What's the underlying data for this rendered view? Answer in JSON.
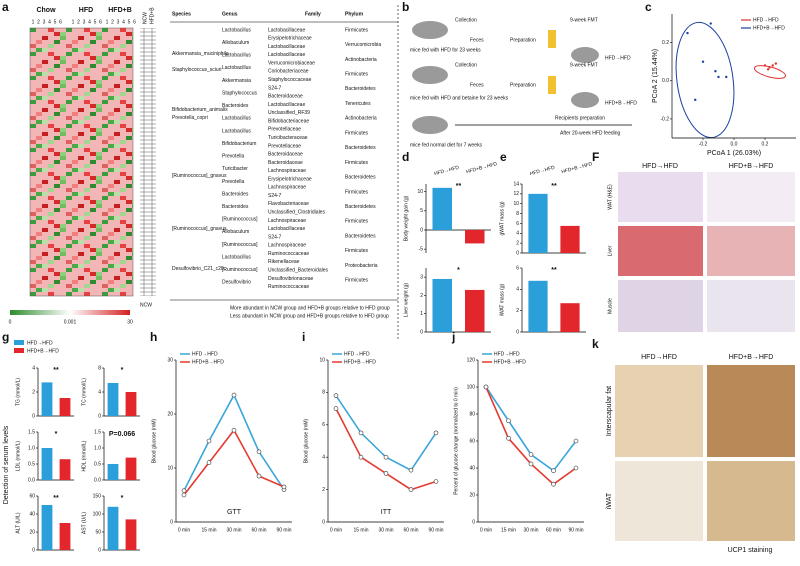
{
  "panel_labels": [
    "a",
    "b",
    "c",
    "d",
    "e",
    "F",
    "g",
    "h",
    "i",
    "j",
    "k"
  ],
  "heatmap": {
    "groups": [
      "Chow",
      "HFD",
      "HFD+B"
    ],
    "columns": [
      "1",
      "2",
      "3",
      "4",
      "5",
      "6"
    ],
    "side": [
      "NCW",
      "HFD+B"
    ],
    "scale": [
      "0",
      "0.001",
      "30"
    ],
    "notes": [
      "More abundant in NCW group and HFD+B groups relative to HFD group",
      "Less abundant in NCW group and HFD+B groups relative to HFD group"
    ]
  },
  "table": {
    "headers": [
      "Species",
      "Genus",
      "Family",
      "Phylum"
    ],
    "species": [
      "Akkermansia_muciniphila",
      "Staphylococcus_sciuri",
      "Bifidobacterium_animalis",
      "Prevotella_copri",
      "[Ruminococcus]_gnavus",
      "[Ruminococcus]_gnavus",
      "Desulfovibrio_C21_c20"
    ],
    "genus": [
      "Lactobacillus",
      "Allobaculum",
      "Lactobacillus",
      "Lactobacillus",
      "Akkermansia",
      "Staphylococcus",
      "Bacteroides",
      "Lactobacillus",
      "Lactobacillus",
      "Bifidobacterium",
      "Prevotella",
      "Turicibacter",
      "Prevotella",
      "Bacteroides",
      "Bacteroides",
      "[Ruminococcus]",
      "Allobaculum",
      "[Ruminococcus]",
      "Lactobacillus",
      "[Ruminococcus]",
      "Desulfovibrio"
    ],
    "family": [
      "Lactobacillaceae",
      "Erysipelotrichaceae",
      "Lactobacillaceae",
      "Lactobacillaceae",
      "Verrucomicrobiaceae",
      "Coriobacteriaceae",
      "Staphylococcaceae",
      "S24-7",
      "Bacteroidaceae",
      "Lactobacillaceae",
      "Unclassified_RF39",
      "Bifidobacteriaceae",
      "Prevotellaceae",
      "Turicibacteraceae",
      "Prevotellaceae",
      "Bacteroidaceae",
      "Bacteroidaceae",
      "Lachnospiraceae",
      "Erysipelotrichaceae",
      "Lachnospiraceae",
      "S24-7",
      "Flavobacteriaceae",
      "Unclassified_Clostridiales",
      "Lachnospiraceae",
      "Lactobacillaceae",
      "S24-7",
      "Lachnospiraceae",
      "Ruminococcaceae",
      "Rikenellaceae",
      "Unclassified_Bacteroidales",
      "Desulfovibrionaceae",
      "Ruminococcaceae"
    ],
    "phylum": [
      "Firmicutes",
      "Verrucomicrobia",
      "Actinobacteria",
      "Firmicutes",
      "Bacteroidetes",
      "Tenericutes",
      "Actinobacteria",
      "Firmicutes",
      "Bacteroidetes",
      "Firmicutes",
      "Bacteroidetes",
      "Firmicutes",
      "Bacteroidetes",
      "Firmicutes",
      "Bacteroidetes",
      "Firmicutes",
      "Proteobacteria",
      "Firmicutes"
    ]
  },
  "schematic": {
    "texts": [
      "Collection",
      "Feces",
      "Preparation",
      "9-week FMT",
      "mice fed with HFD for 23 weeks",
      "Collection",
      "Feces",
      "Preparation",
      "9-week FMT",
      "mice fed with HFD and betaine for 23 weeks",
      "Recipients preparation",
      "After 20-week HFD feeding",
      "mice fed normal diet for 7 weeks",
      "HFD→HFD",
      "HFD+B→HFD"
    ]
  },
  "g_panel": {
    "legend": [
      "HFD→HFD",
      "HFD+B→HFD"
    ],
    "colors": [
      "#2b9fd9",
      "#e3262b"
    ],
    "ylabel": "Detection of serum levels"
  },
  "histology_F": {
    "columns": [
      "HFD→HFD",
      "HFD+B→HFD"
    ],
    "rows": [
      "WAT (H&E)",
      "Liver",
      "Muscle"
    ]
  },
  "histology_k": {
    "columns": [
      "HFD→HFD",
      "HFD+B→HFD"
    ],
    "rows": [
      "Interscapular fat",
      "iWAT"
    ],
    "caption": "UCP1 staining"
  },
  "chart_data": [
    {
      "type": "scatter",
      "xlabel": "PCoA 1 (26.03%)",
      "ylabel": "PCoA 2 (15.44%)",
      "xlim": [
        -0.4,
        0.4
      ],
      "ylim": [
        -0.3,
        0.35
      ],
      "xticks": [
        -0.2,
        {
          "value": 0,
          "label": "0.0"
        },
        0.2
      ],
      "yticks": [
        -0.2,
        {
          "value": 0,
          "label": "0.0"
        },
        0.2
      ],
      "series": [
        {
          "name": "HFD→HFD",
          "color": "#e03030",
          "x": [
            0.2,
            0.23,
            0.25,
            0.22,
            0.27
          ],
          "y": [
            0.08,
            0.07,
            0.08,
            0.06,
            0.09
          ]
        },
        {
          "name": "HFD+B→HFD",
          "color": "#1a3fa0",
          "x": [
            -0.3,
            -0.2,
            -0.15,
            -0.1,
            -0.05,
            -0.12,
            -0.25
          ],
          "y": [
            0.25,
            0.1,
            0.3,
            0.02,
            0.02,
            0.05,
            -0.1
          ]
        }
      ]
    },
    {
      "type": "bar",
      "ylabel": "Body weight gain (g)",
      "categories": [
        "HFD→HFD",
        "HFD+B→HFD"
      ],
      "values": [
        11,
        -3.5
      ],
      "colors": [
        "#2b9fd9",
        "#e3262b"
      ],
      "ylim": [
        -6,
        12
      ],
      "yticks": [
        -5,
        0,
        5,
        10
      ],
      "annotation": "**"
    },
    {
      "type": "bar",
      "ylabel": "Liver weight (g)",
      "values": [
        2.9,
        2.3
      ],
      "colors": [
        "#2b9fd9",
        "#e3262b"
      ],
      "ylim": [
        0,
        3.5
      ],
      "yticks": [
        0,
        1,
        2,
        3
      ],
      "annotation": "*"
    },
    {
      "type": "bar",
      "ylabel": "gWAT mass (g)",
      "categories": [
        "HFD→HFD",
        "HFD+B→HFD"
      ],
      "values": [
        12,
        5.5
      ],
      "colors": [
        "#2b9fd9",
        "#e3262b"
      ],
      "ylim": [
        0,
        14
      ],
      "yticks": [
        0,
        2,
        4,
        6,
        8,
        10,
        12,
        14
      ],
      "annotation": "**"
    },
    {
      "type": "bar",
      "ylabel": "iWAT mass (g)",
      "values": [
        4.8,
        2.7
      ],
      "colors": [
        "#2b9fd9",
        "#e3262b"
      ],
      "ylim": [
        0,
        6
      ],
      "yticks": [
        0,
        2,
        4,
        6
      ],
      "annotation": "**"
    },
    {
      "type": "bar",
      "ylabel": "TG (mmol/L)",
      "values": [
        2.8,
        1.5
      ],
      "colors": [
        "#2b9fd9",
        "#e3262b"
      ],
      "ylim": [
        0,
        4
      ],
      "yticks": [
        0,
        2,
        4
      ],
      "annotation": "**"
    },
    {
      "type": "bar",
      "ylabel": "TC (mmol/L)",
      "values": [
        5.5,
        4.0
      ],
      "colors": [
        "#2b9fd9",
        "#e3262b"
      ],
      "ylim": [
        0,
        8
      ],
      "yticks": [
        0,
        4,
        8
      ],
      "annotation": "*"
    },
    {
      "type": "bar",
      "ylabel": "LDL (mmol/L)",
      "values": [
        1.0,
        0.65
      ],
      "colors": [
        "#2b9fd9",
        "#e3262b"
      ],
      "ylim": [
        0,
        1.5
      ],
      "yticks": [
        {
          "value": 0,
          "label": "0.0"
        },
        {
          "value": 0.5,
          "label": "0.5"
        },
        {
          "value": 1,
          "label": "1.0"
        },
        {
          "value": 1.5,
          "label": "1.5"
        }
      ],
      "annotation": "*"
    },
    {
      "type": "bar",
      "ylabel": "HDL (mmol/L)",
      "values": [
        0.5,
        0.7
      ],
      "colors": [
        "#2b9fd9",
        "#e3262b"
      ],
      "ylim": [
        0,
        1.5
      ],
      "yticks": [
        {
          "value": 0,
          "label": "0.0"
        },
        {
          "value": 0.5,
          "label": "0.5"
        },
        {
          "value": 1,
          "label": "1.0"
        },
        {
          "value": 1.5,
          "label": "1.5"
        }
      ],
      "annotation": "P=0.066"
    },
    {
      "type": "bar",
      "ylabel": "ALT (U/L)",
      "values": [
        50,
        30
      ],
      "colors": [
        "#2b9fd9",
        "#e3262b"
      ],
      "ylim": [
        0,
        60
      ],
      "yticks": [
        0,
        20,
        40,
        60
      ],
      "annotation": "**"
    },
    {
      "type": "bar",
      "ylabel": "AST (U/L)",
      "values": [
        120,
        85
      ],
      "colors": [
        "#2b9fd9",
        "#e3262b"
      ],
      "ylim": [
        0,
        150
      ],
      "yticks": [
        0,
        50,
        100,
        150
      ],
      "annotation": "*"
    },
    {
      "type": "line",
      "label": "GTT",
      "ylabel": "Blood glucose (mM)",
      "categories": [
        "0 min",
        "15 min",
        "30 min",
        "60 min",
        "90 min"
      ],
      "ylim": [
        0,
        30
      ],
      "yticks": [
        0,
        10,
        20,
        30
      ],
      "series": [
        {
          "name": "HFD→HFD",
          "color": "#3aa5d8",
          "values": [
            5.8,
            15,
            23.5,
            13,
            6
          ]
        },
        {
          "name": "HFD+B→HFD",
          "color": "#e53a2f",
          "values": [
            5,
            11,
            17,
            8.5,
            6.5
          ]
        }
      ]
    },
    {
      "type": "line",
      "label": "ITT",
      "ylabel": "Blood glucose (mM)",
      "categories": [
        "0 min",
        "15 min",
        "30 min",
        "60 min",
        "90 min"
      ],
      "ylim": [
        0,
        10
      ],
      "yticks": [
        0,
        2,
        4,
        6,
        8,
        10
      ],
      "series": [
        {
          "name": "HFD→HFD",
          "color": "#3aa5d8",
          "values": [
            7.8,
            5.5,
            4,
            3.2,
            5.5
          ]
        },
        {
          "name": "HFD+B→HFD",
          "color": "#e53a2f",
          "values": [
            7,
            4,
            3,
            2,
            2.5
          ]
        }
      ]
    },
    {
      "type": "line",
      "ylabel": "Percent of glucose change (normalized to 0 min)",
      "categories": [
        "0 min",
        "15 min",
        "30 min",
        "60 min",
        "90 min"
      ],
      "ylim": [
        0,
        120
      ],
      "yticks": [
        0,
        20,
        40,
        60,
        80,
        100,
        120
      ],
      "series": [
        {
          "name": "HFD→HFD",
          "color": "#3aa5d8",
          "values": [
            100,
            75,
            50,
            38,
            60
          ]
        },
        {
          "name": "HFD+B→HFD",
          "color": "#e53a2f",
          "values": [
            100,
            62,
            43,
            28,
            40
          ]
        }
      ]
    }
  ]
}
